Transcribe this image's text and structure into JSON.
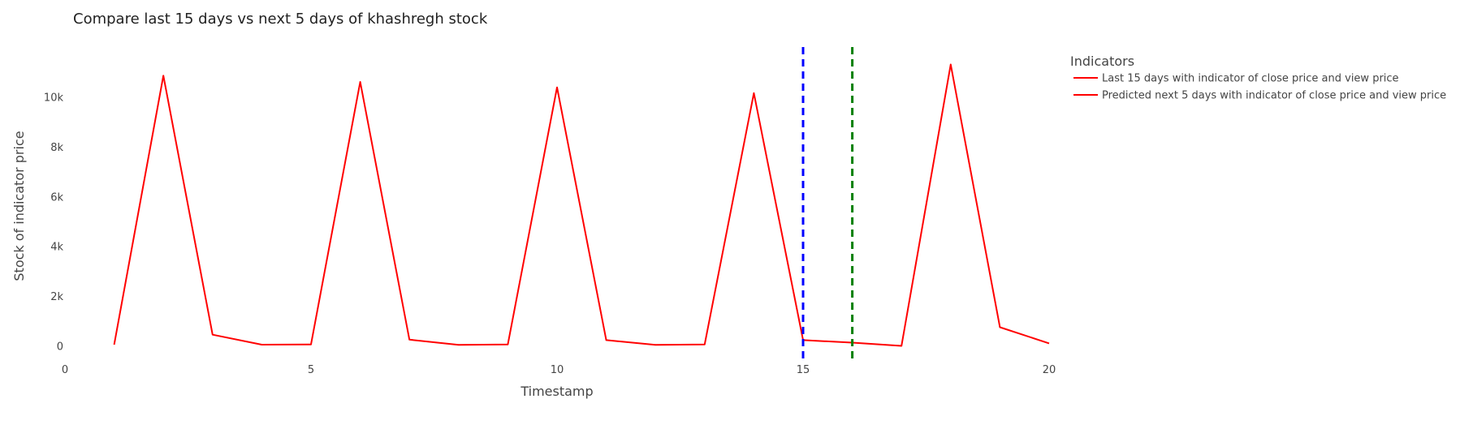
{
  "chart_data": {
    "type": "line",
    "title": "Compare last 15 days vs next 5 days of khashregh stock",
    "xlabel": "Timestamp",
    "ylabel": "Stock of indicator price",
    "xlim": [
      0,
      20
    ],
    "ylim": [
      -700,
      12000
    ],
    "x_ticks": [
      0,
      5,
      10,
      15,
      20
    ],
    "x_tick_labels": [
      "0",
      "5",
      "10",
      "15",
      "20"
    ],
    "y_ticks": [
      0,
      2000,
      4000,
      6000,
      8000,
      10000
    ],
    "y_tick_labels": [
      "0",
      "2k",
      "4k",
      "6k",
      "8k",
      "10k"
    ],
    "grid": false,
    "legend_title": "Indicators",
    "legend_position": "top-right",
    "series": [
      {
        "name": "Last 15 days with indicator of close price and view price",
        "color": "#ff0000",
        "x": [
          1,
          2,
          3,
          4,
          5,
          6,
          7,
          8,
          9,
          10,
          11,
          12,
          13,
          14,
          15
        ],
        "y": [
          50,
          10850,
          450,
          50,
          60,
          10600,
          250,
          40,
          60,
          10380,
          230,
          40,
          60,
          10150,
          230
        ]
      },
      {
        "name": "Predicted next 5 days with indicator of close price and view price",
        "color": "#ff0000",
        "x": [
          15,
          16,
          17,
          18,
          19,
          20
        ],
        "y": [
          230,
          130,
          0,
          11300,
          750,
          100
        ]
      }
    ],
    "vertical_lines": [
      {
        "x": 15,
        "color": "#0000ff",
        "style": "dash"
      },
      {
        "x": 16,
        "color": "#008000",
        "style": "dash"
      }
    ]
  }
}
